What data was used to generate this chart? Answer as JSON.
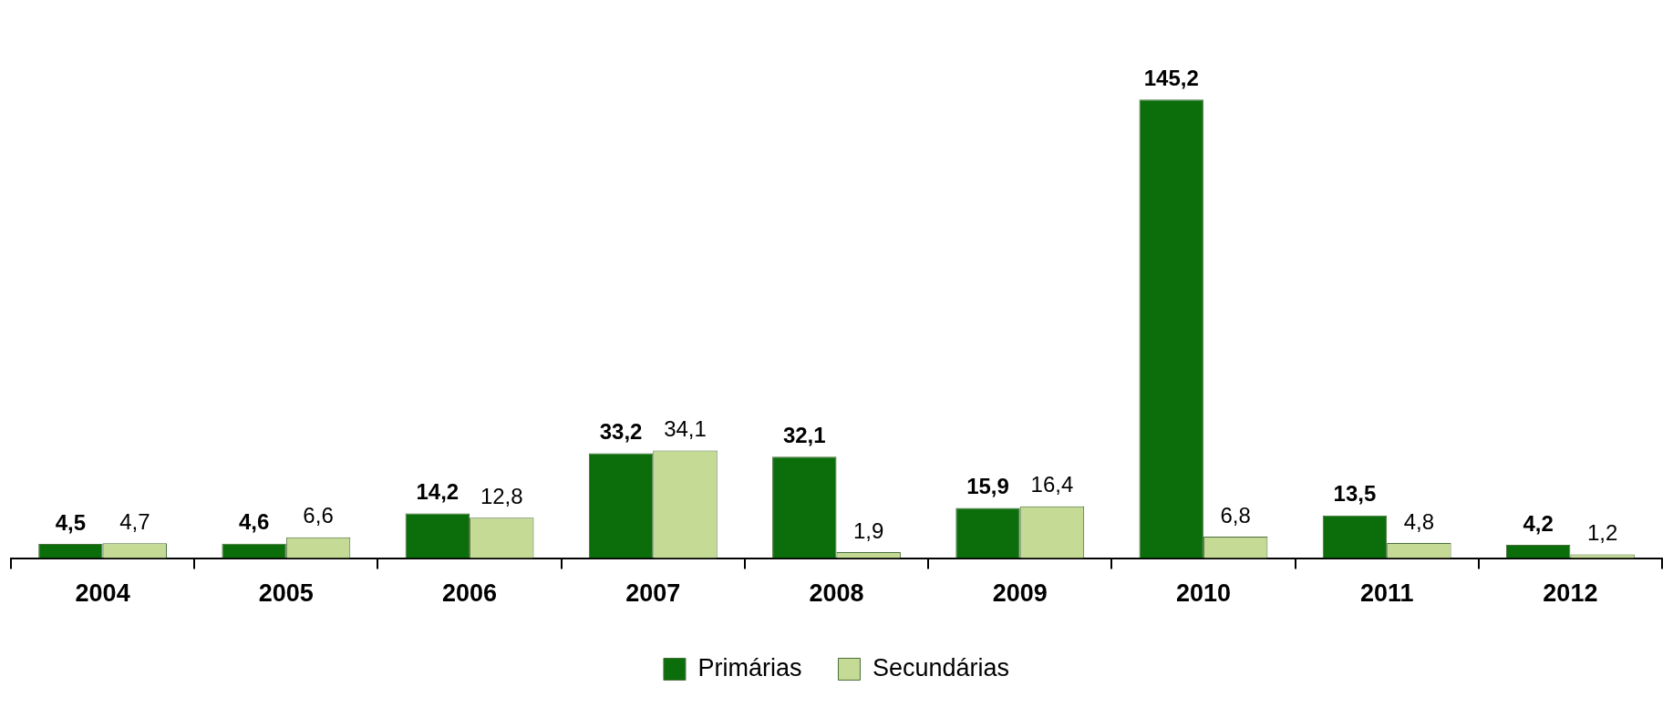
{
  "chart_data": {
    "type": "bar",
    "categories": [
      "2004",
      "2005",
      "2006",
      "2007",
      "2008",
      "2009",
      "2010",
      "2011",
      "2012"
    ],
    "series": [
      {
        "name": "Primárias",
        "color": "#0b6e0b",
        "values": [
          4.5,
          4.6,
          14.2,
          33.2,
          32.1,
          15.9,
          145.2,
          13.5,
          4.2
        ],
        "value_labels": [
          "4,5",
          "4,6",
          "14,2",
          "33,2",
          "32,1",
          "15,9",
          "145,2",
          "13,5",
          "4,2"
        ]
      },
      {
        "name": "Secundárias",
        "color": "#c5db95",
        "values": [
          4.7,
          6.6,
          12.8,
          34.1,
          1.9,
          16.4,
          6.8,
          4.8,
          1.2
        ],
        "value_labels": [
          "4,7",
          "6,6",
          "12,8",
          "34,1",
          "1,9",
          "16,4",
          "6,8",
          "4,8",
          "1,2"
        ]
      }
    ],
    "grid": false,
    "legend": "bottom"
  }
}
